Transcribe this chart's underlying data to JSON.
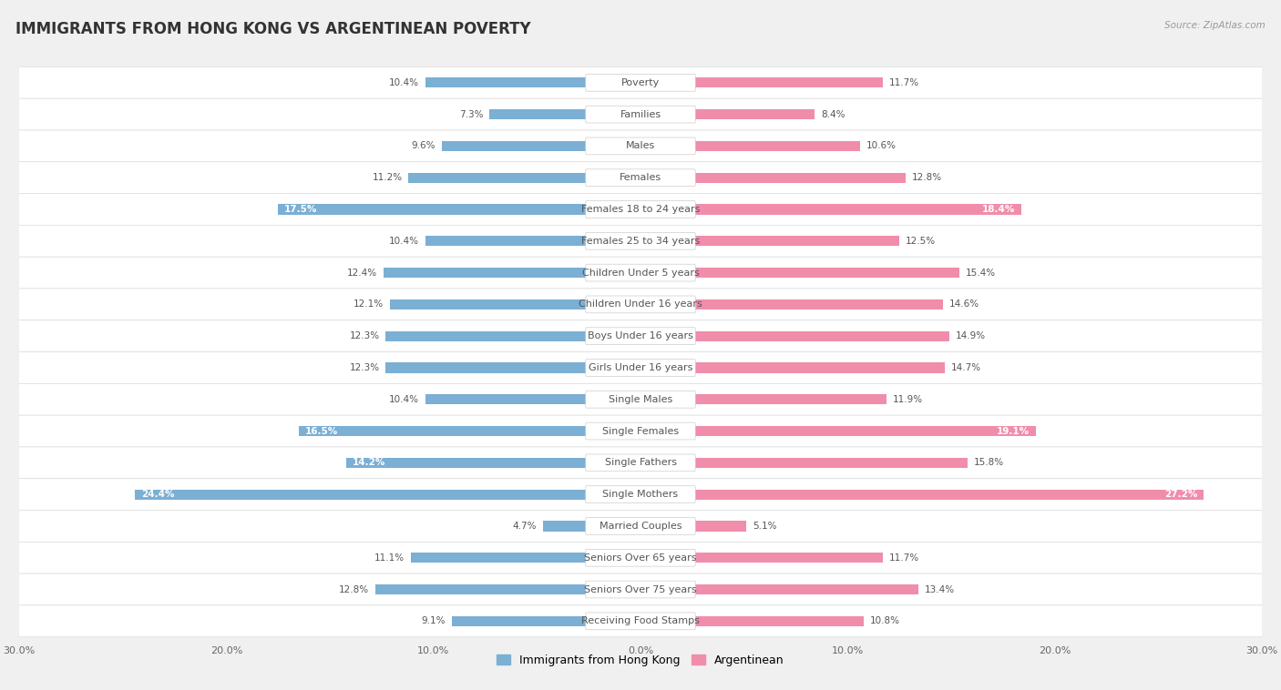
{
  "title": "IMMIGRANTS FROM HONG KONG VS ARGENTINEAN POVERTY",
  "source": "Source: ZipAtlas.com",
  "categories": [
    "Poverty",
    "Families",
    "Males",
    "Females",
    "Females 18 to 24 years",
    "Females 25 to 34 years",
    "Children Under 5 years",
    "Children Under 16 years",
    "Boys Under 16 years",
    "Girls Under 16 years",
    "Single Males",
    "Single Females",
    "Single Fathers",
    "Single Mothers",
    "Married Couples",
    "Seniors Over 65 years",
    "Seniors Over 75 years",
    "Receiving Food Stamps"
  ],
  "hk_values": [
    10.4,
    7.3,
    9.6,
    11.2,
    17.5,
    10.4,
    12.4,
    12.1,
    12.3,
    12.3,
    10.4,
    16.5,
    14.2,
    24.4,
    4.7,
    11.1,
    12.8,
    9.1
  ],
  "arg_values": [
    11.7,
    8.4,
    10.6,
    12.8,
    18.4,
    12.5,
    15.4,
    14.6,
    14.9,
    14.7,
    11.9,
    19.1,
    15.8,
    27.2,
    5.1,
    11.7,
    13.4,
    10.8
  ],
  "hk_color": "#7bafd4",
  "arg_color": "#f08dab",
  "hk_label": "Immigrants from Hong Kong",
  "arg_label": "Argentinean",
  "axis_max": 30.0,
  "bg_color": "#f0f0f0",
  "row_color_odd": "#ffffff",
  "row_color_even": "#f7f7f7",
  "title_fontsize": 12,
  "label_fontsize": 8,
  "value_fontsize": 7.5,
  "bar_height": 0.32
}
